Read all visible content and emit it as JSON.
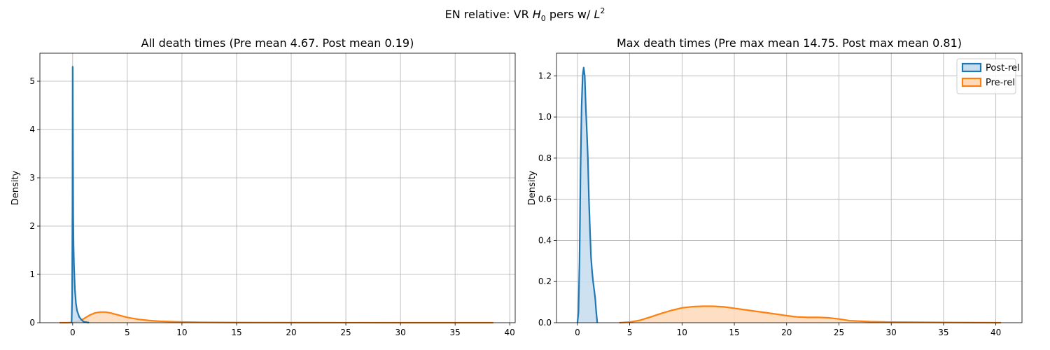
{
  "figure": {
    "suptitle_main": "EN relative: VR ",
    "suptitle_h": "H",
    "suptitle_h_sub": "0",
    "suptitle_mid": " pers w/ ",
    "suptitle_l": "L",
    "suptitle_l_sup": "2"
  },
  "colors": {
    "post": "#1f77b4",
    "pre": "#ff7f0e",
    "post_fill": "#c6dcef",
    "pre_fill": "#ffd9b9"
  },
  "chart_data": [
    {
      "type": "area",
      "title": "All death times (Pre mean 4.67. Post mean 0.19)",
      "xlabel": "",
      "ylabel": "Density",
      "xlim": [
        -3.0,
        40.5
      ],
      "ylim": [
        0,
        5.58
      ],
      "xticks": [
        0,
        5,
        10,
        15,
        20,
        25,
        30,
        35,
        40
      ],
      "yticks": [
        0,
        1,
        2,
        3,
        4,
        5
      ],
      "grid": true,
      "legend": null,
      "series": [
        {
          "key": "pre",
          "x": [
            -1.2,
            -0.5,
            0.0,
            0.5,
            1.0,
            1.5,
            2.0,
            2.5,
            3.0,
            3.5,
            4.0,
            5.0,
            6.0,
            7.0,
            8.0,
            10.0,
            12.0,
            15.0,
            20.0,
            25.0,
            30.0,
            35.0,
            38.5
          ],
          "y": [
            0.0,
            0.0,
            0.005,
            0.03,
            0.08,
            0.15,
            0.2,
            0.22,
            0.22,
            0.2,
            0.17,
            0.11,
            0.07,
            0.045,
            0.03,
            0.015,
            0.008,
            0.004,
            0.002,
            0.001,
            0.0005,
            0.0002,
            0.0
          ]
        },
        {
          "key": "post",
          "x": [
            -0.1,
            -0.05,
            -0.02,
            0.0,
            0.02,
            0.05,
            0.08,
            0.12,
            0.2,
            0.3,
            0.4,
            0.6,
            0.8,
            1.0,
            1.5
          ],
          "y": [
            0.0,
            0.5,
            2.5,
            5.3,
            4.0,
            2.2,
            1.6,
            1.2,
            0.7,
            0.4,
            0.25,
            0.12,
            0.06,
            0.02,
            0.0
          ]
        }
      ]
    },
    {
      "type": "area",
      "title": "Max death times (Pre max mean 14.75. Post max mean 0.81)",
      "xlabel": "",
      "ylabel": "Density",
      "xlim": [
        -2.0,
        42.5
      ],
      "ylim": [
        0,
        1.31
      ],
      "xticks": [
        0,
        5,
        10,
        15,
        20,
        25,
        30,
        35,
        40
      ],
      "yticks": [
        0.0,
        0.2,
        0.4,
        0.6,
        0.8,
        1.0,
        1.2
      ],
      "grid": true,
      "legend": "top-right",
      "series": [
        {
          "key": "post",
          "name": "Post-rel",
          "x": [
            0.0,
            0.1,
            0.2,
            0.3,
            0.4,
            0.5,
            0.6,
            0.7,
            0.8,
            0.9,
            1.0,
            1.1,
            1.2,
            1.3,
            1.4,
            1.5,
            1.6,
            1.7,
            1.8,
            1.9
          ],
          "y": [
            0.0,
            0.05,
            0.3,
            0.75,
            1.05,
            1.2,
            1.24,
            1.2,
            1.05,
            0.93,
            0.8,
            0.6,
            0.45,
            0.32,
            0.25,
            0.2,
            0.16,
            0.12,
            0.05,
            0.0
          ]
        },
        {
          "key": "pre",
          "name": "Pre-rel",
          "x": [
            4.0,
            5.0,
            6.0,
            7.0,
            8.0,
            9.0,
            10.0,
            11.0,
            12.0,
            13.0,
            14.0,
            15.0,
            16.0,
            17.0,
            18.0,
            19.0,
            20.0,
            21.0,
            22.0,
            23.0,
            24.0,
            25.0,
            26.0,
            28.0,
            30.0,
            33.0,
            36.0,
            40.5
          ],
          "y": [
            0.0,
            0.003,
            0.012,
            0.028,
            0.045,
            0.06,
            0.072,
            0.078,
            0.08,
            0.08,
            0.077,
            0.07,
            0.063,
            0.056,
            0.049,
            0.042,
            0.034,
            0.028,
            0.026,
            0.026,
            0.024,
            0.018,
            0.01,
            0.005,
            0.003,
            0.002,
            0.001,
            0.0
          ]
        }
      ]
    }
  ]
}
